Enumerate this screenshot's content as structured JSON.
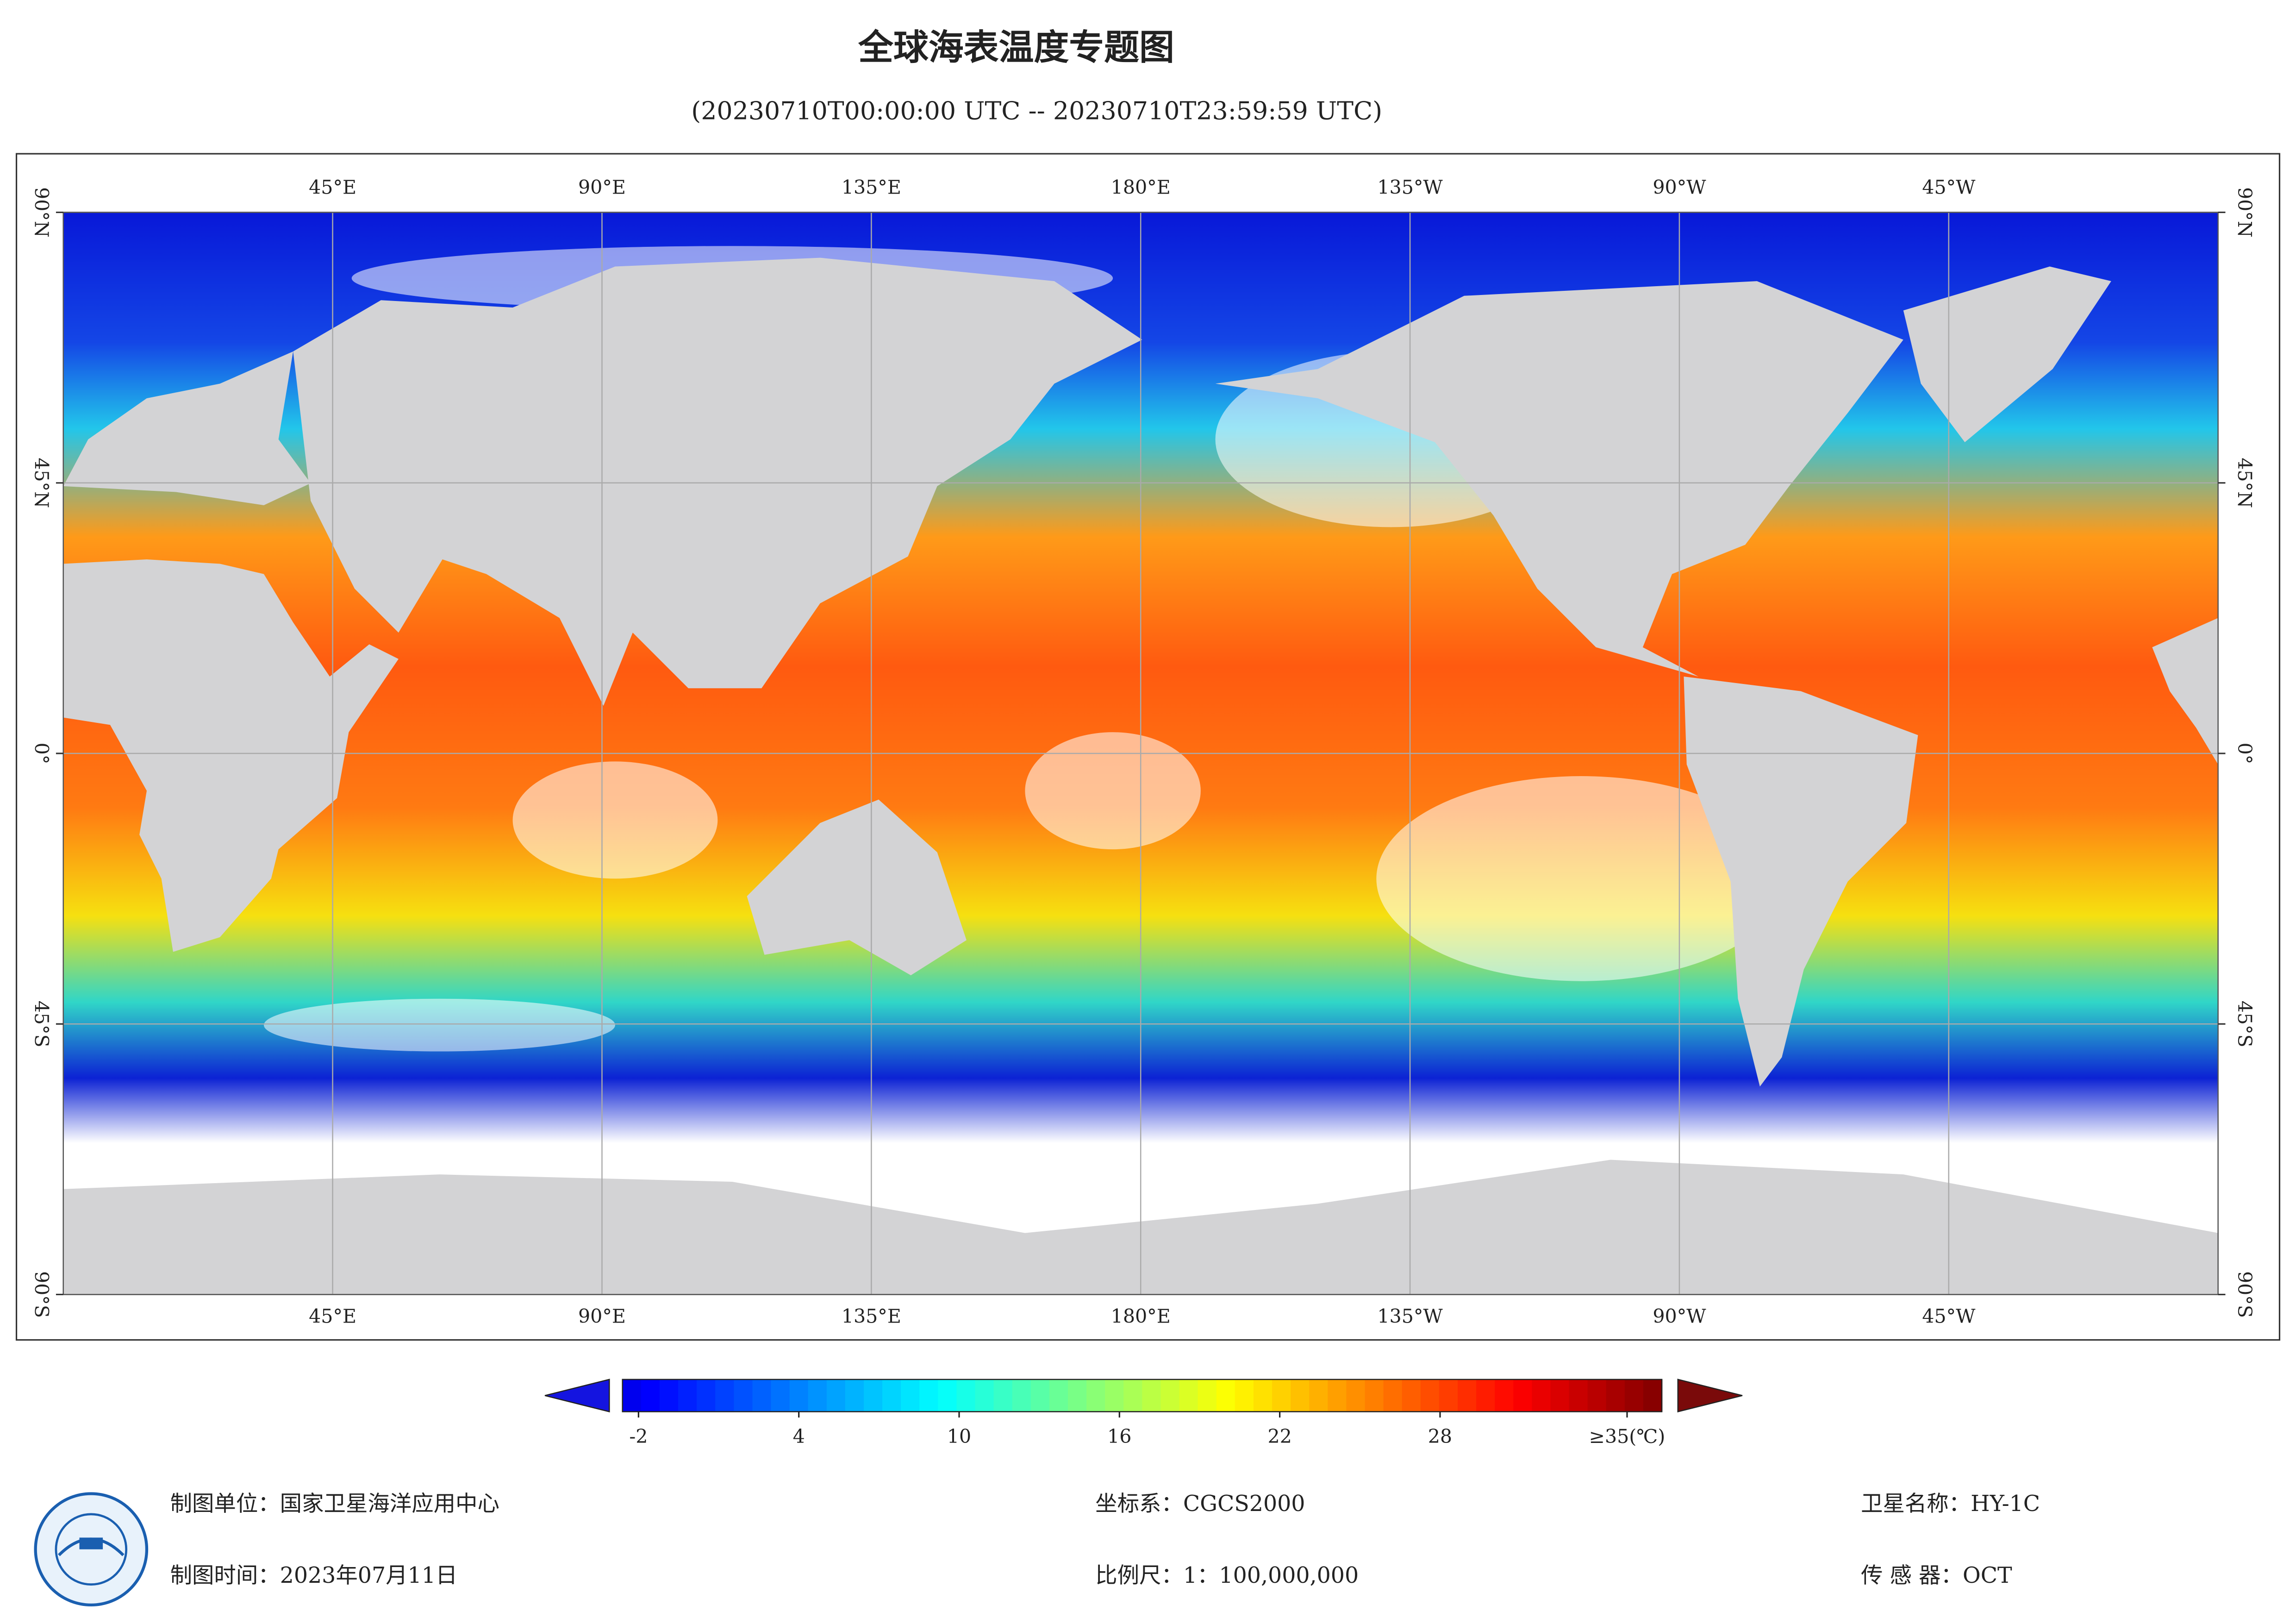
{
  "map": {
    "title": "全球海表温度专题图",
    "subtitle": "(20230710T00:00:00 UTC -- 20230710T23:59:59 UTC)",
    "lon_ticks": [
      {
        "value": 45,
        "label": "45°E"
      },
      {
        "value": 90,
        "label": "90°E"
      },
      {
        "value": 135,
        "label": "135°E"
      },
      {
        "value": 180,
        "label": "180°E"
      },
      {
        "value": 225,
        "label": "135°W"
      },
      {
        "value": 270,
        "label": "90°W"
      },
      {
        "value": 315,
        "label": "45°W"
      }
    ],
    "lat_ticks": [
      {
        "value": 90,
        "label": "90°N"
      },
      {
        "value": 45,
        "label": "45°N"
      },
      {
        "value": 0,
        "label": "0°"
      },
      {
        "value": -45,
        "label": "45°S"
      },
      {
        "value": -90,
        "label": "90°S"
      }
    ],
    "colorbar": {
      "range": [
        -2.6,
        36.3
      ],
      "ticks": [
        -2,
        4,
        10,
        16,
        22,
        28,
        {
          "value": 35,
          "label": "≥35(℃)"
        }
      ]
    },
    "footer": {
      "unit": "制图单位：国家卫星海洋应用中心",
      "date": "制图时间：2023年07月11日",
      "crs": "坐标系：CGCS2000",
      "scale": "比例尺：1：100,000,000",
      "satellite": "卫星名称：HY-1C",
      "sensor": "传 感 器：OCT"
    }
  }
}
